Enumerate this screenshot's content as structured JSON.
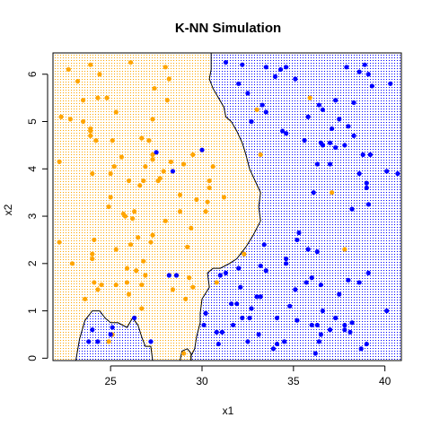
{
  "chart_data": {
    "type": "scatter",
    "title": "K-NN Simulation",
    "xlabel": "x1",
    "ylabel": "x2",
    "xlim": [
      21.85,
      40.9
    ],
    "ylim": [
      -0.05,
      6.45
    ],
    "xticks": [
      25,
      30,
      35,
      40
    ],
    "yticks": [
      0,
      1,
      2,
      3,
      4,
      5,
      6
    ],
    "grid": false,
    "background": "dotted decision-region grid shaded by predicted class",
    "colors": {
      "orange": "#FFA500",
      "blue": "#0000FF",
      "boundary": "#000000"
    },
    "series": [
      {
        "color": "orange",
        "points": [
          [
            22.7,
            6.1
          ],
          [
            23.2,
            5.85
          ],
          [
            23.5,
            5.45
          ],
          [
            23.9,
            6.2
          ],
          [
            24.4,
            6.0
          ],
          [
            22.3,
            5.1
          ],
          [
            22.8,
            5.05
          ],
          [
            23.5,
            5.0
          ],
          [
            24.3,
            5.5
          ],
          [
            24.8,
            5.5
          ],
          [
            23.9,
            4.85
          ],
          [
            23.9,
            4.7
          ],
          [
            24.2,
            4.6
          ],
          [
            25.1,
            4.6
          ],
          [
            25.3,
            5.2
          ],
          [
            26.1,
            6.25
          ],
          [
            28.0,
            6.15
          ],
          [
            28.2,
            5.9
          ],
          [
            27.4,
            5.7
          ],
          [
            28.1,
            5.45
          ],
          [
            27.3,
            5.05
          ],
          [
            26.7,
            4.65
          ],
          [
            27.1,
            4.6
          ],
          [
            25.6,
            4.25
          ],
          [
            22.2,
            4.15
          ],
          [
            24.0,
            3.9
          ],
          [
            25.0,
            3.9
          ],
          [
            25.2,
            4.05
          ],
          [
            26.0,
            3.75
          ],
          [
            26.6,
            3.65
          ],
          [
            26.8,
            3.75
          ],
          [
            26.9,
            4.05
          ],
          [
            27.3,
            4.2
          ],
          [
            28.3,
            4.15
          ],
          [
            27.9,
            3.95
          ],
          [
            29.0,
            4.1
          ],
          [
            27.7,
            3.8
          ],
          [
            30.6,
            4.05
          ],
          [
            30.4,
            3.75
          ],
          [
            30.4,
            3.6
          ],
          [
            31.2,
            3.4
          ],
          [
            30.3,
            3.3
          ],
          [
            29.7,
            3.35
          ],
          [
            28.8,
            3.45
          ],
          [
            27.6,
            3.75
          ],
          [
            28.8,
            3.1
          ],
          [
            25.0,
            3.4
          ],
          [
            24.9,
            3.2
          ],
          [
            25.7,
            3.05
          ],
          [
            26.2,
            2.95
          ],
          [
            28.0,
            2.9
          ],
          [
            29.2,
            2.35
          ],
          [
            29.4,
            2.75
          ],
          [
            27.3,
            2.6
          ],
          [
            27.2,
            2.45
          ],
          [
            25.3,
            2.3
          ],
          [
            26.8,
            2.05
          ],
          [
            26.9,
            1.75
          ],
          [
            24.0,
            2.2
          ],
          [
            24.0,
            2.1
          ],
          [
            22.2,
            2.45
          ],
          [
            24.1,
            1.6
          ],
          [
            24.5,
            1.55
          ],
          [
            25.3,
            1.55
          ],
          [
            25.9,
            1.6
          ],
          [
            25.9,
            1.9
          ],
          [
            26.4,
            1.85
          ],
          [
            26.7,
            1.55
          ],
          [
            26.0,
            1.35
          ],
          [
            28.4,
            1.45
          ],
          [
            29.5,
            1.5
          ],
          [
            29.3,
            1.7
          ],
          [
            23.6,
            1.25
          ],
          [
            24.9,
            0.35
          ],
          [
            29.0,
            0.1
          ],
          [
            26.7,
            1.05
          ],
          [
            25.1,
            0.5
          ],
          [
            22.9,
            2.0
          ],
          [
            24.3,
            1.45
          ],
          [
            24.1,
            2.5
          ],
          [
            30.8,
            1.6
          ],
          [
            32.3,
            2.2
          ],
          [
            26.1,
            2.4
          ],
          [
            26.5,
            2.55
          ],
          [
            26.3,
            3.1
          ],
          [
            25.8,
            3.0
          ],
          [
            27.3,
            4.3
          ],
          [
            29.5,
            4.3
          ],
          [
            29.1,
            1.25
          ],
          [
            30.2,
            3.1
          ],
          [
            23.9,
            4.8
          ],
          [
            33.0,
            5.25
          ],
          [
            35.9,
            5.5
          ],
          [
            37.1,
            3.5
          ],
          [
            37.8,
            2.3
          ],
          [
            33.2,
            4.3
          ]
        ]
      },
      {
        "color": "blue",
        "points": [
          [
            31.3,
            6.25
          ],
          [
            32.2,
            6.2
          ],
          [
            33.5,
            6.15
          ],
          [
            32.0,
            5.8
          ],
          [
            32.5,
            5.6
          ],
          [
            32.7,
            5.0
          ],
          [
            33.5,
            5.2
          ],
          [
            33.3,
            5.35
          ],
          [
            34.0,
            5.95
          ],
          [
            34.3,
            6.1
          ],
          [
            34.6,
            6.15
          ],
          [
            34.4,
            4.8
          ],
          [
            34.6,
            4.75
          ],
          [
            35.1,
            5.9
          ],
          [
            35.6,
            4.6
          ],
          [
            35.8,
            5.1
          ],
          [
            36.4,
            5.35
          ],
          [
            36.6,
            5.25
          ],
          [
            37.0,
            4.55
          ],
          [
            37.3,
            5.45
          ],
          [
            37.5,
            5.05
          ],
          [
            37.1,
            4.85
          ],
          [
            37.9,
            6.15
          ],
          [
            38.3,
            5.4
          ],
          [
            38.3,
            4.7
          ],
          [
            38.6,
            6.05
          ],
          [
            38.9,
            6.2
          ],
          [
            39.1,
            6.0
          ],
          [
            39.3,
            5.75
          ],
          [
            40.3,
            5.8
          ],
          [
            36.3,
            4.1
          ],
          [
            36.5,
            4.55
          ],
          [
            36.6,
            4.5
          ],
          [
            37.3,
            4.45
          ],
          [
            37.0,
            4.1
          ],
          [
            37.8,
            4.5
          ],
          [
            38.6,
            3.9
          ],
          [
            38.8,
            4.3
          ],
          [
            39.0,
            3.6
          ],
          [
            39.0,
            3.7
          ],
          [
            39.2,
            4.3
          ],
          [
            40.1,
            3.95
          ],
          [
            40.7,
            3.9
          ],
          [
            38.2,
            3.15
          ],
          [
            39.1,
            3.25
          ],
          [
            36.1,
            3.5
          ],
          [
            35.3,
            2.65
          ],
          [
            35.2,
            2.5
          ],
          [
            33.4,
            2.4
          ],
          [
            35.8,
            2.3
          ],
          [
            36.3,
            2.25
          ],
          [
            34.6,
            2.1
          ],
          [
            34.6,
            2.0
          ],
          [
            33.2,
            1.95
          ],
          [
            33.5,
            1.85
          ],
          [
            32.0,
            1.9
          ],
          [
            31.3,
            1.8
          ],
          [
            31.0,
            1.75
          ],
          [
            32.1,
            1.5
          ],
          [
            36.0,
            1.7
          ],
          [
            36.5,
            1.55
          ],
          [
            38.0,
            1.65
          ],
          [
            38.6,
            1.6
          ],
          [
            39.1,
            1.8
          ],
          [
            37.5,
            1.35
          ],
          [
            36.6,
            1.0
          ],
          [
            35.1,
            1.45
          ],
          [
            33.2,
            1.3
          ],
          [
            31.6,
            1.15
          ],
          [
            31.9,
            1.15
          ],
          [
            32.7,
            1.05
          ],
          [
            33.0,
            1.3
          ],
          [
            32.2,
            0.85
          ],
          [
            34.1,
            0.85
          ],
          [
            35.2,
            0.8
          ],
          [
            36.3,
            0.7
          ],
          [
            36.5,
            0.5
          ],
          [
            36.4,
            0.35
          ],
          [
            37.0,
            0.6
          ],
          [
            37.3,
            0.85
          ],
          [
            37.8,
            0.6
          ],
          [
            38.1,
            0.55
          ],
          [
            39.0,
            0.3
          ],
          [
            40.1,
            1.0
          ],
          [
            38.7,
            0.2
          ],
          [
            34.5,
            0.35
          ],
          [
            34.1,
            0.3
          ],
          [
            33.9,
            0.2
          ],
          [
            32.5,
            0.35
          ],
          [
            33.1,
            0.5
          ],
          [
            31.7,
            0.7
          ],
          [
            30.8,
            0.55
          ],
          [
            30.9,
            0.3
          ],
          [
            30.2,
            0.95
          ],
          [
            30.1,
            0.7
          ],
          [
            36.2,
            0.1
          ],
          [
            38.2,
            0.75
          ],
          [
            37.8,
            0.7
          ],
          [
            23.8,
            0.35
          ],
          [
            24.3,
            0.35
          ],
          [
            24.0,
            0.6
          ],
          [
            25.0,
            0.5
          ],
          [
            25.1,
            0.65
          ],
          [
            26.3,
            0.85
          ],
          [
            27.2,
            0.35
          ],
          [
            28.2,
            1.75
          ],
          [
            28.6,
            1.75
          ],
          [
            27.5,
            4.35
          ],
          [
            28.4,
            3.95
          ],
          [
            30.0,
            4.4
          ],
          [
            32.6,
            0.85
          ],
          [
            31.1,
            0.55
          ],
          [
            36.0,
            0.7
          ],
          [
            35.7,
            1.6
          ],
          [
            34.8,
            1.1
          ],
          [
            38.0,
            4.9
          ]
        ]
      }
    ],
    "boundaries": [
      {
        "name": "main",
        "points": [
          [
            30.5,
            6.45
          ],
          [
            30.5,
            6.1
          ],
          [
            30.4,
            5.9
          ],
          [
            30.6,
            5.7
          ],
          [
            30.9,
            5.5
          ],
          [
            31.2,
            5.3
          ],
          [
            31.3,
            5.1
          ],
          [
            31.6,
            5.0
          ],
          [
            31.9,
            4.8
          ],
          [
            32.2,
            4.55
          ],
          [
            32.4,
            4.3
          ],
          [
            32.6,
            4.0
          ],
          [
            32.9,
            3.75
          ],
          [
            33.2,
            3.5
          ],
          [
            33.1,
            3.2
          ],
          [
            33.2,
            2.9
          ],
          [
            32.8,
            2.6
          ],
          [
            32.4,
            2.35
          ],
          [
            31.9,
            2.1
          ],
          [
            31.5,
            2.0
          ],
          [
            31.0,
            1.9
          ],
          [
            30.6,
            1.9
          ],
          [
            30.3,
            1.8
          ],
          [
            30.4,
            1.5
          ],
          [
            30.0,
            1.25
          ],
          [
            29.9,
            0.95
          ],
          [
            29.9,
            0.75
          ],
          [
            29.7,
            0.45
          ],
          [
            29.6,
            0.2
          ],
          [
            29.4,
            0.05
          ],
          [
            29.4,
            -0.05
          ]
        ]
      },
      {
        "name": "lower-left-pocket",
        "points": [
          [
            23.1,
            -0.05
          ],
          [
            23.3,
            0.4
          ],
          [
            23.6,
            0.8
          ],
          [
            24.0,
            1.0
          ],
          [
            24.4,
            1.0
          ],
          [
            24.7,
            0.85
          ],
          [
            25.0,
            0.75
          ],
          [
            25.4,
            0.75
          ],
          [
            25.9,
            0.65
          ],
          [
            26.2,
            0.85
          ],
          [
            26.5,
            0.7
          ],
          [
            26.7,
            0.45
          ],
          [
            26.9,
            0.25
          ],
          [
            27.2,
            0.25
          ],
          [
            27.3,
            -0.05
          ]
        ]
      },
      {
        "name": "small-loop",
        "points": [
          [
            28.8,
            -0.05
          ],
          [
            28.9,
            0.15
          ],
          [
            29.2,
            0.2
          ],
          [
            29.4,
            0.1
          ],
          [
            29.4,
            -0.05
          ]
        ]
      }
    ]
  }
}
